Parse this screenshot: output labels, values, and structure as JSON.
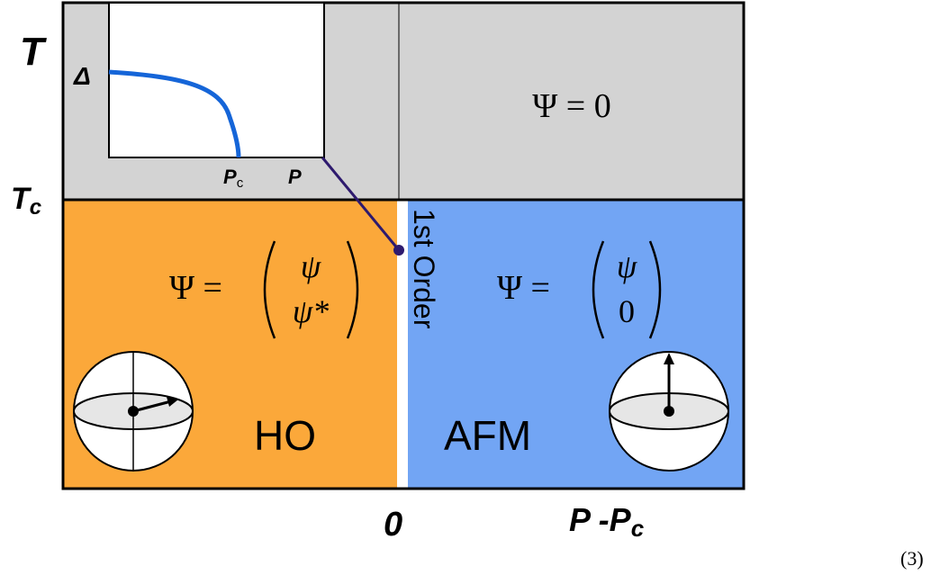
{
  "axes": {
    "y_label": "T",
    "critical_temperature": {
      "base": "T",
      "sub": "c"
    },
    "origin": "0",
    "x_label": {
      "base": "P -P",
      "sub": "c"
    }
  },
  "inset": {
    "y_label": "Δ",
    "critical_pressure": {
      "base": "P",
      "sub": "c"
    },
    "x_label": "P"
  },
  "regions": {
    "disordered": {
      "formula": "Ψ = 0"
    },
    "hidden_order": {
      "label": "HO",
      "lhs": "Ψ =",
      "entries": [
        "ψ",
        "ψ*"
      ]
    },
    "antiferromagnet": {
      "label": "AFM",
      "lhs": "Ψ =",
      "entries": [
        "ψ",
        "0"
      ]
    }
  },
  "boundary_label": "1st Order",
  "equation_number": "(3)"
}
